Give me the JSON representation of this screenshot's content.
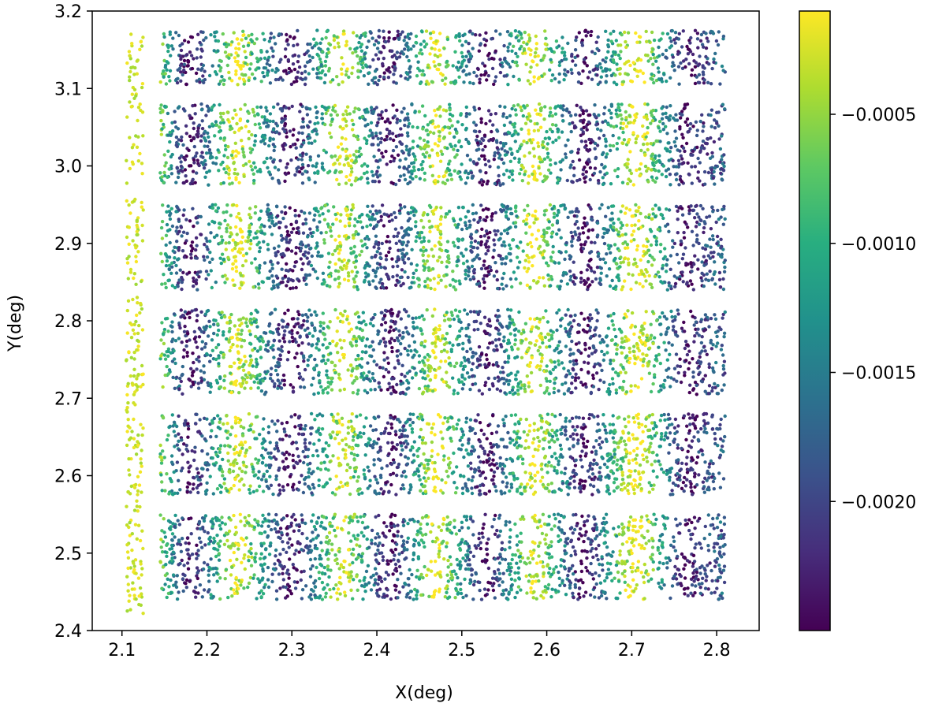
{
  "chart_data": {
    "type": "scatter",
    "xlabel": "X(deg)",
    "ylabel": "Y(deg)",
    "xlim": [
      2.065,
      2.85
    ],
    "ylim": [
      2.4,
      3.2
    ],
    "xticks": [
      2.1,
      2.2,
      2.3,
      2.4,
      2.5,
      2.6,
      2.7,
      2.8
    ],
    "yticks": [
      2.4,
      2.5,
      2.6,
      2.7,
      2.8,
      2.9,
      3.0,
      3.1,
      3.2
    ],
    "xtick_labels": [
      "2.1",
      "2.2",
      "2.3",
      "2.4",
      "2.5",
      "2.6",
      "2.7",
      "2.8"
    ],
    "ytick_labels": [
      "2.4",
      "2.5",
      "2.6",
      "2.7",
      "2.8",
      "2.9",
      "3.0",
      "3.1",
      "3.2"
    ],
    "grid": false,
    "colormap": "viridis",
    "colorbar": {
      "range": [
        -0.0025,
        -0.0001
      ],
      "ticks": [
        -0.0005,
        -0.001,
        -0.0015,
        -0.002
      ],
      "tick_labels": [
        "−0.0005",
        "−0.0010",
        "−0.0015",
        "−0.0020"
      ]
    },
    "point_color": "value mapped through viridis colormap",
    "bands": [
      {
        "y_range": [
          2.44,
          2.55
        ]
      },
      {
        "y_range": [
          2.575,
          2.68
        ]
      },
      {
        "y_range": [
          2.705,
          2.815
        ]
      },
      {
        "y_range": [
          2.84,
          2.95
        ]
      },
      {
        "y_range": [
          2.975,
          3.08
        ]
      },
      {
        "y_range": [
          3.105,
          3.175
        ]
      }
    ],
    "x_range_points": [
      2.145,
      2.81
    ],
    "stripe_pattern": {
      "yellow_x": [
        2.135,
        2.235,
        2.36,
        2.47,
        2.585,
        2.7,
        2.71
      ],
      "purple_x": [
        2.18,
        2.3,
        2.415,
        2.53,
        2.645,
        2.765
      ]
    }
  }
}
